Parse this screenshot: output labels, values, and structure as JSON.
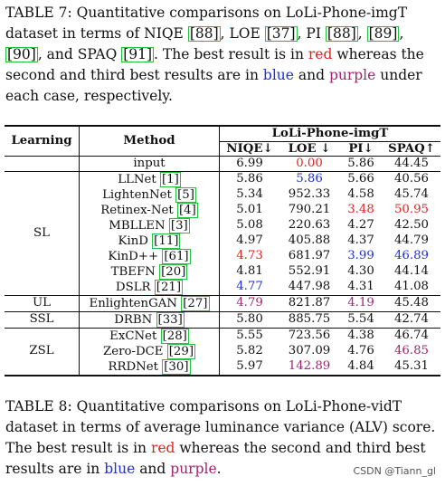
{
  "caption7": {
    "p1": "TABLE 7: Quantitative comparisons on LoLi-Phone-imgT dataset in terms of NIQE ",
    "r1": "[88]",
    "p2": ", LOE ",
    "r2": "[37]",
    "p3": ", PI ",
    "r3": "[88]",
    "p4": ", ",
    "r4": "[89]",
    "p5": ", ",
    "r5": "[90]",
    "p6": ", and SPAQ ",
    "r6": "[91]",
    "p7": ". The best result is in ",
    "red_word": "red",
    "p8": " whereas the second and third best results are in ",
    "blue_word": "blue",
    "p9": " and ",
    "purple_word": "purple",
    "p10": " under each case, respectively."
  },
  "table": {
    "group_header": "LoLi-Phone-imgT",
    "col_learning": "Learning",
    "col_method": "Method",
    "col_niqe": "NIQE↓",
    "col_loe": "LOE ↓",
    "col_pi": "PI↓",
    "col_spaq": "SPAQ↑",
    "groups": {
      "sl": "SL",
      "ul": "UL",
      "ssl": "SSL",
      "zsl": "ZSL"
    },
    "rows": [
      {
        "method": "input",
        "ref": "",
        "niqe": "6.99",
        "loe": "0.00",
        "pi": "5.86",
        "spaq": "44.45"
      },
      {
        "method": "LLNet ",
        "ref": "[1]",
        "niqe": "5.86",
        "loe": "5.86",
        "pi": "5.66",
        "spaq": "40.56"
      },
      {
        "method": "LightenNet ",
        "ref": "[5]",
        "niqe": "5.34",
        "loe": "952.33",
        "pi": "4.58",
        "spaq": "45.74"
      },
      {
        "method": "Retinex-Net ",
        "ref": "[4]",
        "niqe": "5.01",
        "loe": "790.21",
        "pi": "3.48",
        "spaq": "50.95"
      },
      {
        "method": "MBLLEN ",
        "ref": "[3]",
        "niqe": "5.08",
        "loe": "220.63",
        "pi": "4.27",
        "spaq": "42.50"
      },
      {
        "method": "KinD ",
        "ref": "[11]",
        "niqe": "4.97",
        "loe": "405.88",
        "pi": "4.37",
        "spaq": "44.79"
      },
      {
        "method": "KinD++ ",
        "ref": "[61]",
        "niqe": "4.73",
        "loe": "681.97",
        "pi": "3.99",
        "spaq": "46.89"
      },
      {
        "method": "TBEFN ",
        "ref": "[20]",
        "niqe": "4.81",
        "loe": "552.91",
        "pi": "4.30",
        "spaq": "44.14"
      },
      {
        "method": "DSLR ",
        "ref": "[21]",
        "niqe": "4.77",
        "loe": "447.98",
        "pi": "4.31",
        "spaq": "41.08"
      },
      {
        "method": "EnlightenGAN ",
        "ref": "[27]",
        "niqe": "4.79",
        "loe": "821.87",
        "pi": "4.19",
        "spaq": "45.48"
      },
      {
        "method": "DRBN ",
        "ref": "[33]",
        "niqe": "5.80",
        "loe": "885.75",
        "pi": "5.54",
        "spaq": "42.74"
      },
      {
        "method": "ExCNet ",
        "ref": "[28]",
        "niqe": "5.55",
        "loe": "723.56",
        "pi": "4.38",
        "spaq": "46.74"
      },
      {
        "method": "Zero-DCE ",
        "ref": "[29]",
        "niqe": "5.82",
        "loe": "307.09",
        "pi": "4.76",
        "spaq": "46.85"
      },
      {
        "method": "RRDNet ",
        "ref": "[30]",
        "niqe": "5.97",
        "loe": "142.89",
        "pi": "4.84",
        "spaq": "45.31"
      }
    ],
    "highlight_colors": {
      "red": "#e0221e",
      "blue": "#1d2fd6",
      "purple": "#a0246e",
      "ref_box": "#22c33a"
    }
  },
  "caption8": {
    "p1": "TABLE 8: Quantitative comparisons on LoLi-Phone-vidT dataset in terms of average luminance variance (ALV) score. The best result is in ",
    "red_word": "red",
    "p2": " whereas the second and third best results are in ",
    "blue_word": "blue",
    "p3": " and ",
    "purple_word": "purple",
    "p4": "."
  },
  "watermark": "CSDN @Tiann_gl"
}
